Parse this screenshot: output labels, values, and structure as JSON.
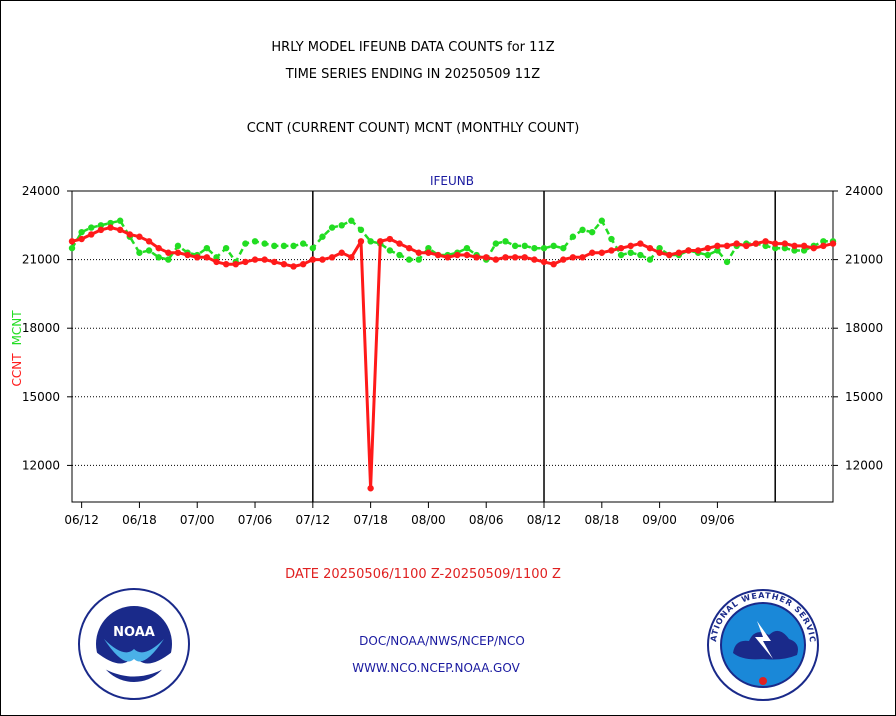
{
  "header": {
    "title_line1": "HRLY MODEL IFEUNB DATA COUNTS for 11Z",
    "title_line2": "TIME SERIES ENDING IN 20250509 11Z",
    "subtitle": "CCNT (CURRENT COUNT) MCNT (MONTHLY COUNT)"
  },
  "footer": {
    "date_range": "DATE 20250506/1100 Z-20250509/1100 Z",
    "org_line1": "DOC/NOAA/NWS/NCEP/NCO",
    "org_line2": "WWW.NCO.NCEP.NOAA.GOV",
    "noaa_logo_text": "NOAA",
    "nws_logo_text": "NATIONAL WEATHER SERVICE"
  },
  "colors": {
    "ccnt": "#ff1a1a",
    "mcnt": "#22dd22",
    "title_blue": "#1a1aa0",
    "date_red": "#e02020"
  },
  "chart_data": {
    "type": "line",
    "title": "IFEUNB",
    "ylabel_left": [
      "CCNT",
      "MCNT"
    ],
    "ylim": [
      10400,
      24000
    ],
    "yticks": [
      12000,
      15000,
      18000,
      21000,
      24000
    ],
    "ytick_labels": [
      "12000",
      "15000",
      "18000",
      "21000",
      "24000"
    ],
    "xtick_labels": [
      "06/12",
      "06/18",
      "07/00",
      "07/06",
      "07/12",
      "07/18",
      "08/00",
      "08/06",
      "08/12",
      "08/18",
      "09/00",
      "09/06"
    ],
    "major_vlines_at_hours": [
      30,
      54,
      78
    ],
    "grid": "horizontal dotted",
    "legend": "none",
    "x_axis_hours": [
      5,
      84
    ],
    "series": [
      {
        "name": "CCNT",
        "x": [
          5,
          6,
          7,
          8,
          9,
          10,
          11,
          12,
          13,
          14,
          15,
          16,
          17,
          18,
          19,
          20,
          21,
          22,
          23,
          24,
          25,
          26,
          27,
          28,
          29,
          30,
          31,
          32,
          33,
          34,
          35,
          36,
          37,
          38,
          39,
          40,
          41,
          42,
          43,
          44,
          45,
          46,
          47,
          48,
          49,
          50,
          51,
          52,
          53,
          54,
          55,
          56,
          57,
          58,
          59,
          60,
          61,
          62,
          63,
          64,
          65,
          66,
          67,
          68,
          69,
          70,
          71,
          72,
          73,
          74,
          75,
          76,
          77,
          78,
          79,
          80,
          81,
          82,
          83,
          84
        ],
        "values": [
          21800,
          21900,
          22100,
          22300,
          22400,
          22300,
          22100,
          22000,
          21800,
          21500,
          21300,
          21300,
          21200,
          21100,
          21100,
          20900,
          20800,
          20800,
          20900,
          21000,
          21000,
          20900,
          20800,
          20700,
          20800,
          21000,
          21000,
          21100,
          21300,
          21100,
          21800,
          11000,
          21800,
          21900,
          21700,
          21500,
          21300,
          21300,
          21200,
          21100,
          21200,
          21200,
          21100,
          21100,
          21000,
          21100,
          21100,
          21100,
          21000,
          20900,
          20800,
          21000,
          21100,
          21100,
          21300,
          21300,
          21400,
          21500,
          21600,
          21700,
          21500,
          21300,
          21200,
          21300,
          21400,
          21400,
          21500,
          21600,
          21600,
          21700,
          21600,
          21700,
          21800,
          21700,
          21700,
          21600,
          21600,
          21500,
          21600,
          21700
        ]
      },
      {
        "name": "MCNT",
        "x": [
          5,
          6,
          7,
          8,
          9,
          10,
          11,
          12,
          13,
          14,
          15,
          16,
          17,
          18,
          19,
          20,
          21,
          22,
          23,
          24,
          25,
          26,
          27,
          28,
          29,
          30,
          31,
          32,
          33,
          34,
          35,
          36,
          37,
          38,
          39,
          40,
          41,
          42,
          43,
          44,
          45,
          46,
          47,
          48,
          49,
          50,
          51,
          52,
          53,
          54,
          55,
          56,
          57,
          58,
          59,
          60,
          61,
          62,
          63,
          64,
          65,
          66,
          67,
          68,
          69,
          70,
          71,
          72,
          73,
          74,
          75,
          76,
          77,
          78,
          79,
          80,
          81,
          82,
          83,
          84
        ],
        "values": [
          21500,
          22200,
          22400,
          22500,
          22600,
          22700,
          22000,
          21300,
          21400,
          21100,
          21000,
          21600,
          21300,
          21200,
          21500,
          21100,
          21500,
          20900,
          21700,
          21800,
          21700,
          21600,
          21600,
          21600,
          21700,
          21500,
          22000,
          22400,
          22500,
          22700,
          22300,
          21800,
          21700,
          21400,
          21200,
          21000,
          21000,
          21500,
          21200,
          21200,
          21300,
          21500,
          21200,
          21000,
          21700,
          21800,
          21600,
          21600,
          21500,
          21500,
          21600,
          21500,
          22000,
          22300,
          22200,
          22700,
          21900,
          21200,
          21300,
          21200,
          21000,
          21500,
          21200,
          21200,
          21400,
          21300,
          21200,
          21400,
          20900,
          21600,
          21700,
          21700,
          21600,
          21500,
          21500,
          21400,
          21400,
          21600,
          21800,
          21800
        ]
      }
    ]
  }
}
